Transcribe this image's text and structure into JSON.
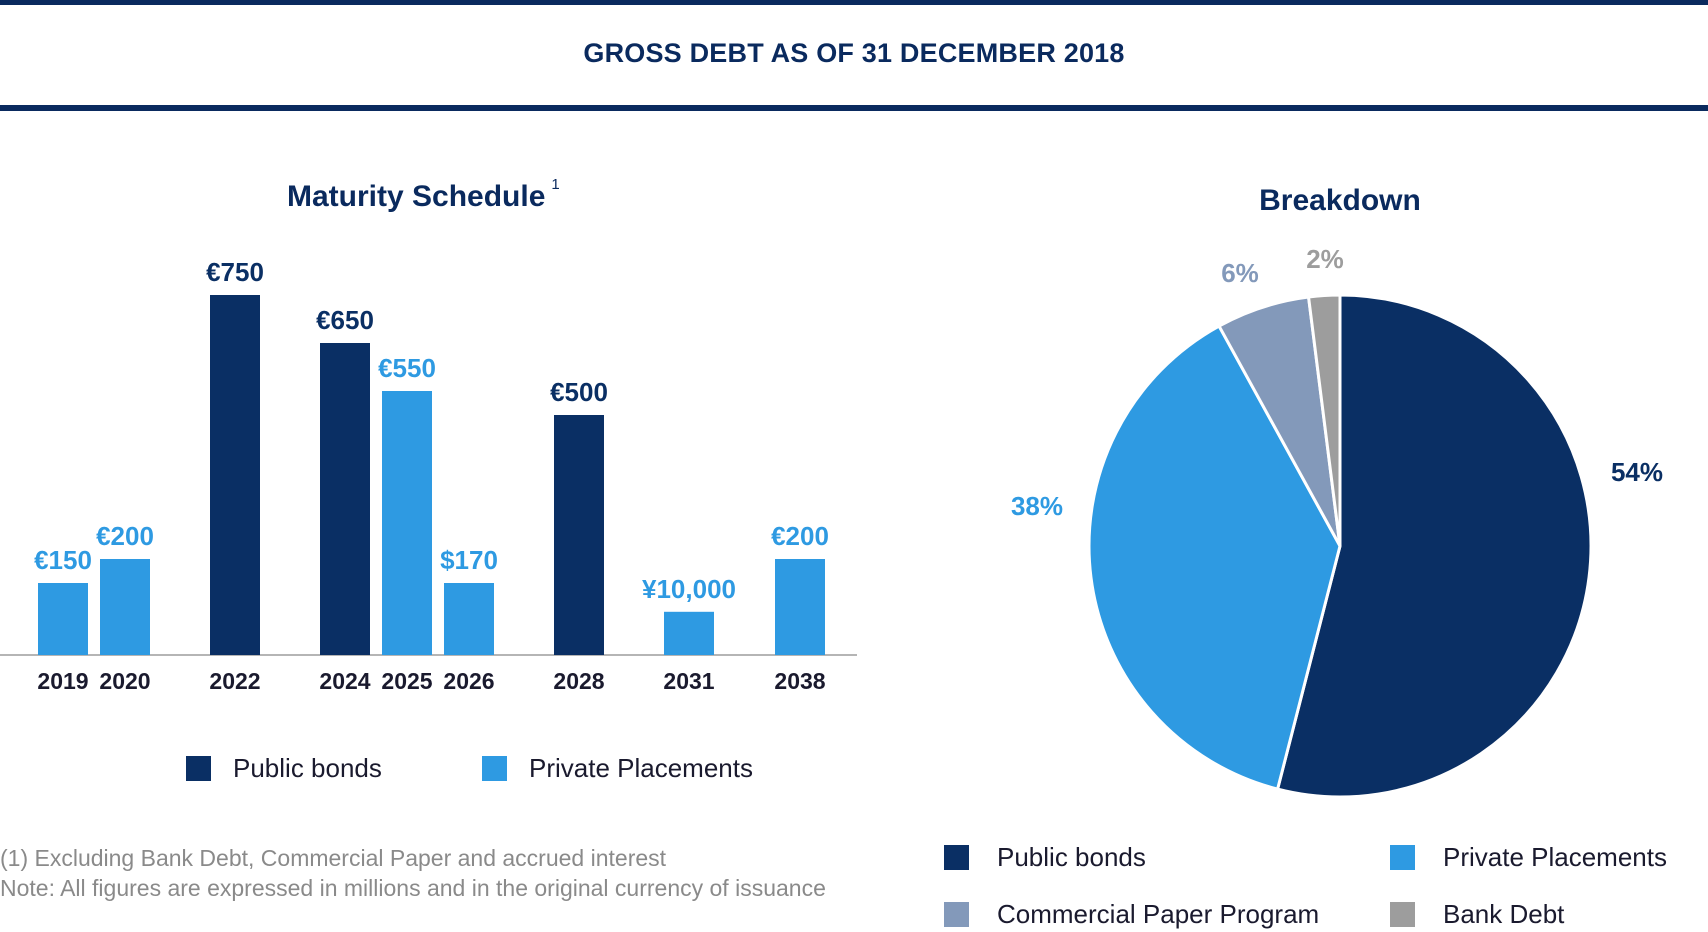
{
  "header": {
    "title": "GROSS DEBT AS OF 31 DECEMBER 2018"
  },
  "bar_chart": {
    "title": "Maturity Schedule",
    "title_note": "1",
    "legend": [
      {
        "label": "Public bonds",
        "color": "#0a2f64"
      },
      {
        "label": "Private Placements",
        "color": "#2e9ae2"
      }
    ]
  },
  "pie_chart": {
    "title": "Breakdown",
    "legend": [
      {
        "label": "Public bonds",
        "color": "#0a2f64"
      },
      {
        "label": "Private Placements",
        "color": "#2e9ae2"
      },
      {
        "label": "Commercial Paper Program",
        "color": "#8399ba"
      },
      {
        "label": "Bank Debt",
        "color": "#9d9d9d"
      }
    ]
  },
  "footnotes": {
    "line1": "(1) Excluding Bank Debt, Commercial Paper and accrued interest",
    "line2": "Note: All figures are expressed in millions and in the original currency of issuance"
  },
  "chart_data": [
    {
      "type": "bar",
      "title": "Maturity Schedule",
      "categories": [
        "2019",
        "2020",
        "2022",
        "2024",
        "2025",
        "2026",
        "2028",
        "2031",
        "2038"
      ],
      "bars": [
        {
          "year": "2019",
          "series": "Private Placements",
          "value": 150,
          "label": "€150"
        },
        {
          "year": "2020",
          "series": "Private Placements",
          "value": 200,
          "label": "€200"
        },
        {
          "year": "2022",
          "series": "Public bonds",
          "value": 750,
          "label": "€750"
        },
        {
          "year": "2024",
          "series": "Public bonds",
          "value": 650,
          "label": "€650"
        },
        {
          "year": "2025",
          "series": "Private Placements",
          "value": 550,
          "label": "€550"
        },
        {
          "year": "2026",
          "series": "Private Placements",
          "value": 150,
          "label": "$170"
        },
        {
          "year": "2028",
          "series": "Public bonds",
          "value": 500,
          "label": "€500"
        },
        {
          "year": "2031",
          "series": "Private Placements",
          "value": 90,
          "label": "¥10,000"
        },
        {
          "year": "2038",
          "series": "Private Placements",
          "value": 200,
          "label": "€200"
        }
      ],
      "series": [
        {
          "name": "Public bonds",
          "color": "#0a2f64"
        },
        {
          "name": "Private Placements",
          "color": "#2e9ae2"
        }
      ],
      "legend_position": "bottom",
      "grid": false
    },
    {
      "type": "pie",
      "title": "Breakdown",
      "slices": [
        {
          "name": "Public bonds",
          "value": 54,
          "label": "54%",
          "color": "#0a2f64"
        },
        {
          "name": "Private Placements",
          "value": 38,
          "label": "38%",
          "color": "#2e9ae2"
        },
        {
          "name": "Commercial Paper Program",
          "value": 6,
          "label": "6%",
          "color": "#8399ba"
        },
        {
          "name": "Bank Debt",
          "value": 2,
          "label": "2%",
          "color": "#9d9d9d"
        }
      ],
      "legend_position": "bottom"
    }
  ]
}
